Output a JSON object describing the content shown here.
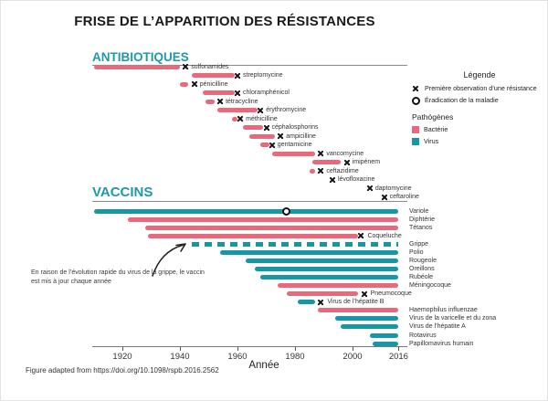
{
  "title": "FRISE DE L’APPARITION DES RÉSISTANCES",
  "sections": {
    "antibiotics_heading": "ANTIBIOTIQUES",
    "vaccines_heading": "VACCINS"
  },
  "colors": {
    "bacteria": "#e8697b",
    "virus": "#1697a5",
    "heading_teal": "#1b9aab",
    "marker_black": "#141414"
  },
  "legend": {
    "title": "Légende",
    "items": [
      {
        "marker": "x-marker",
        "label": "Première observation d’une résistance"
      },
      {
        "marker": "circle-marker",
        "label": "Éradication de la maladie"
      }
    ],
    "pathogens_title": "Pathógènes",
    "pathogens": [
      {
        "color_key": "bacteria",
        "label": "Bactérie"
      },
      {
        "color_key": "virus",
        "label": "Virus"
      }
    ]
  },
  "annotation": {
    "line1": "En raison de l’évolution rapide du virus de la grippe, le vaccin",
    "line2": "est mis à jour chaque année"
  },
  "axis": {
    "label": "Année",
    "ticks": [
      1920,
      1940,
      1960,
      1980,
      2000,
      2016
    ],
    "x_range": [
      1909,
      2019
    ]
  },
  "footer": "Figure adapted from https://doi.org/10.1098/rspb.2016.2562",
  "chart_data": {
    "type": "timeline",
    "x_axis": {
      "label": "Année",
      "ticks": [
        1920,
        1940,
        1960,
        1980,
        2000,
        2016
      ],
      "range": [
        1909,
        2019
      ]
    },
    "antibiotics": [
      {
        "name": "sulfonamides",
        "pathogen": "bacteria",
        "bar": [
          1910,
          1940
        ],
        "resistance_year": 1942
      },
      {
        "name": "streptomycine",
        "pathogen": "bacteria",
        "bar": [
          1944,
          1959
        ],
        "resistance_year": 1960
      },
      {
        "name": "pénicilline",
        "pathogen": "bacteria",
        "bar": [
          1940,
          1943
        ],
        "resistance_year": 1945
      },
      {
        "name": "chloramphénicol",
        "pathogen": "bacteria",
        "bar": [
          1948,
          1959
        ],
        "resistance_year": 1960
      },
      {
        "name": "tétracycline",
        "pathogen": "bacteria",
        "bar": [
          1949,
          1952
        ],
        "resistance_year": 1954
      },
      {
        "name": "érythromycine",
        "pathogen": "bacteria",
        "bar": [
          1953,
          1967
        ],
        "resistance_year": 1968
      },
      {
        "name": "méthicilline",
        "pathogen": "bacteria",
        "bar": [
          1958,
          1960
        ],
        "resistance_year": 1961
      },
      {
        "name": "céphalosphorins",
        "pathogen": "bacteria",
        "bar": [
          1962,
          1969
        ],
        "resistance_year": 1970
      },
      {
        "name": "ampicilline",
        "pathogen": "bacteria",
        "bar": [
          1964,
          1973
        ],
        "resistance_year": 1975
      },
      {
        "name": "gentamicine",
        "pathogen": "bacteria",
        "bar": [
          1968,
          1971
        ],
        "resistance_year": 1972
      },
      {
        "name": "vancomycine",
        "pathogen": "bacteria",
        "bar": [
          1972,
          1987
        ],
        "resistance_year": 1989
      },
      {
        "name": "imipénem",
        "pathogen": "bacteria",
        "bar": [
          1986,
          1996
        ],
        "resistance_year": 1998
      },
      {
        "name": "ceftazidime",
        "pathogen": "bacteria",
        "bar": [
          1985,
          1987
        ],
        "resistance_year": 1989
      },
      {
        "name": "lévofloxacine",
        "pathogen": "bacteria",
        "bar": null,
        "resistance_year": 1993
      },
      {
        "name": "daptomycine",
        "pathogen": "bacteria",
        "bar": null,
        "resistance_year": 2006
      },
      {
        "name": "ceftaroline",
        "pathogen": "bacteria",
        "bar": null,
        "resistance_year": 2011
      }
    ],
    "vaccines": [
      {
        "name": "Variole",
        "pathogen": "virus",
        "bar": [
          1910,
          2016
        ],
        "style": "solid",
        "eradication_year": 1977,
        "label_position": "right"
      },
      {
        "name": "Diphtérie",
        "pathogen": "bacteria",
        "bar": [
          1922,
          2016
        ],
        "style": "solid",
        "label_position": "right"
      },
      {
        "name": "Tétanos",
        "pathogen": "bacteria",
        "bar": [
          1928,
          2016
        ],
        "style": "solid",
        "label_position": "right"
      },
      {
        "name": "Coqueluche",
        "pathogen": "bacteria",
        "bar": [
          1929,
          2002
        ],
        "style": "solid",
        "resistance_year": 2003,
        "label_position": "inline"
      },
      {
        "name": "Grippe",
        "pathogen": "virus",
        "bar": [
          1944,
          2016
        ],
        "style": "dashed",
        "label_position": "right"
      },
      {
        "name": "Polio",
        "pathogen": "virus",
        "bar": [
          1954,
          2016
        ],
        "style": "solid",
        "label_position": "right"
      },
      {
        "name": "Rougeole",
        "pathogen": "virus",
        "bar": [
          1963,
          2016
        ],
        "style": "solid",
        "label_position": "right"
      },
      {
        "name": "Oreillons",
        "pathogen": "virus",
        "bar": [
          1966,
          2016
        ],
        "style": "solid",
        "label_position": "right"
      },
      {
        "name": "Rubéole",
        "pathogen": "virus",
        "bar": [
          1968,
          2016
        ],
        "style": "solid",
        "label_position": "right"
      },
      {
        "name": "Méningocoque",
        "pathogen": "bacteria",
        "bar": [
          1974,
          2016
        ],
        "style": "solid",
        "label_position": "right"
      },
      {
        "name": "Pneumocoque",
        "pathogen": "bacteria",
        "bar": [
          1977,
          2002
        ],
        "style": "solid",
        "resistance_year": 2004,
        "label_position": "inline"
      },
      {
        "name": "Virus de l’hépatite B",
        "pathogen": "virus",
        "bar": [
          1981,
          1987
        ],
        "style": "solid",
        "resistance_year": 1989,
        "label_position": "inline"
      },
      {
        "name": "Haemophilus influenzae",
        "pathogen": "bacteria",
        "bar": [
          1988,
          2016
        ],
        "style": "solid",
        "label_position": "right"
      },
      {
        "name": "Virus de la varicelle et du zona",
        "pathogen": "virus",
        "bar": [
          1994,
          2016
        ],
        "style": "solid",
        "label_position": "right"
      },
      {
        "name": "Virus de l’hépatite A",
        "pathogen": "virus",
        "bar": [
          1996,
          2016
        ],
        "style": "solid",
        "label_position": "right"
      },
      {
        "name": "Rotavirus",
        "pathogen": "virus",
        "bar": [
          2006,
          2016
        ],
        "style": "solid",
        "label_position": "right"
      },
      {
        "name": "Papillomavirus humain",
        "pathogen": "virus",
        "bar": [
          2007,
          2016
        ],
        "style": "solid",
        "label_position": "right"
      }
    ]
  }
}
